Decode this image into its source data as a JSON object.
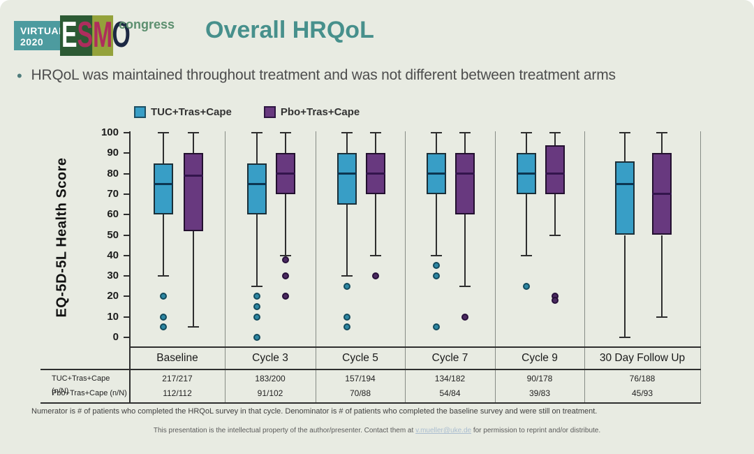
{
  "logo": {
    "virtual_line1": "VIRTUAL",
    "virtual_line2": "2020",
    "esmo_letters": [
      "E",
      "S",
      "M",
      "O"
    ],
    "congress": "congress"
  },
  "title": "Overall HRQoL",
  "bullet_marker": "•",
  "bullet": "HRQoL was maintained throughout treatment and was not different between treatment arms",
  "legend": [
    {
      "label": "TUC+Tras+Cape",
      "color": "#389ec6",
      "border": "#1d4f63"
    },
    {
      "label": "Pbo+Tras+Cape",
      "color": "#68397f",
      "border": "#2e1642"
    }
  ],
  "chart_data": {
    "type": "boxplot",
    "title": "",
    "xlabel": "",
    "ylabel": "EQ-5D-5L Health Score",
    "ylim": [
      0,
      100
    ],
    "yticks": [
      0,
      10,
      20,
      30,
      40,
      50,
      60,
      70,
      80,
      90,
      100
    ],
    "grid": false,
    "legend_position": "top",
    "categories": [
      "Baseline",
      "Cycle 3",
      "Cycle 5",
      "Cycle 7",
      "Cycle 9",
      "30 Day Follow Up"
    ],
    "series": [
      {
        "name": "TUC+Tras+Cape",
        "color": "#389ec6",
        "border_color": "#1b2f38",
        "median_color": "#0c3550",
        "point_color": "#2d87a3",
        "point_border_color": "#134a5c",
        "boxes": [
          {
            "low": 30,
            "q1": 60,
            "median": 75,
            "q3": 85,
            "high": 100,
            "outliers": [
              20,
              10,
              5
            ]
          },
          {
            "low": 25,
            "q1": 60,
            "median": 75,
            "q3": 85,
            "high": 100,
            "outliers": [
              20,
              15,
              10,
              0
            ]
          },
          {
            "low": 30,
            "q1": 65,
            "median": 80,
            "q3": 90,
            "high": 100,
            "outliers": [
              25,
              10,
              5
            ]
          },
          {
            "low": 40,
            "q1": 70,
            "median": 80,
            "q3": 90,
            "high": 100,
            "outliers": [
              35,
              30,
              5
            ]
          },
          {
            "low": 40,
            "q1": 70,
            "median": 80,
            "q3": 90,
            "high": 100,
            "outliers": [
              25
            ]
          },
          {
            "low": 0,
            "q1": 50,
            "median": 75,
            "q3": 86,
            "high": 100,
            "outliers": []
          }
        ]
      },
      {
        "name": "Pbo+Tras+Cape",
        "color": "#68397f",
        "border_color": "#23102f",
        "median_color": "#33154c",
        "point_color": "#4b2a61",
        "point_border_color": "#27103a",
        "boxes": [
          {
            "low": 5,
            "q1": 52,
            "median": 79,
            "q3": 90,
            "high": 100,
            "outliers": []
          },
          {
            "low": 40,
            "q1": 70,
            "median": 80,
            "q3": 90,
            "high": 100,
            "outliers": [
              38,
              30,
              20
            ]
          },
          {
            "low": 40,
            "q1": 70,
            "median": 80,
            "q3": 90,
            "high": 100,
            "outliers": [
              30
            ]
          },
          {
            "low": 25,
            "q1": 60,
            "median": 80,
            "q3": 90,
            "high": 100,
            "outliers": [
              10
            ]
          },
          {
            "low": 50,
            "q1": 70,
            "median": 80,
            "q3": 94,
            "high": 100,
            "outliers": [
              20,
              18
            ]
          },
          {
            "low": 10,
            "q1": 50,
            "median": 70,
            "q3": 90,
            "high": 100,
            "outliers": []
          }
        ]
      }
    ]
  },
  "table": {
    "rows": [
      {
        "label": "TUC+Tras+Cape (n/N)",
        "values": [
          "217/217",
          "183/200",
          "157/194",
          "134/182",
          "90/178",
          "76/188"
        ]
      },
      {
        "label": "Pbo+Tras+Cape (n/N)",
        "values": [
          "112/112",
          "91/102",
          "70/88",
          "54/84",
          "39/83",
          "45/93"
        ]
      }
    ]
  },
  "footnote": "Numerator is # of patients who completed the HRQoL survey in that cycle. Denominator is # of patients who completed the baseline survey and were still on treatment.",
  "copyright": {
    "pre": "This presentation is the intellectual property of the author/presenter. Contact them at ",
    "email": "v.mueller@uke.de",
    "post": " for permission to reprint and/or distribute."
  }
}
